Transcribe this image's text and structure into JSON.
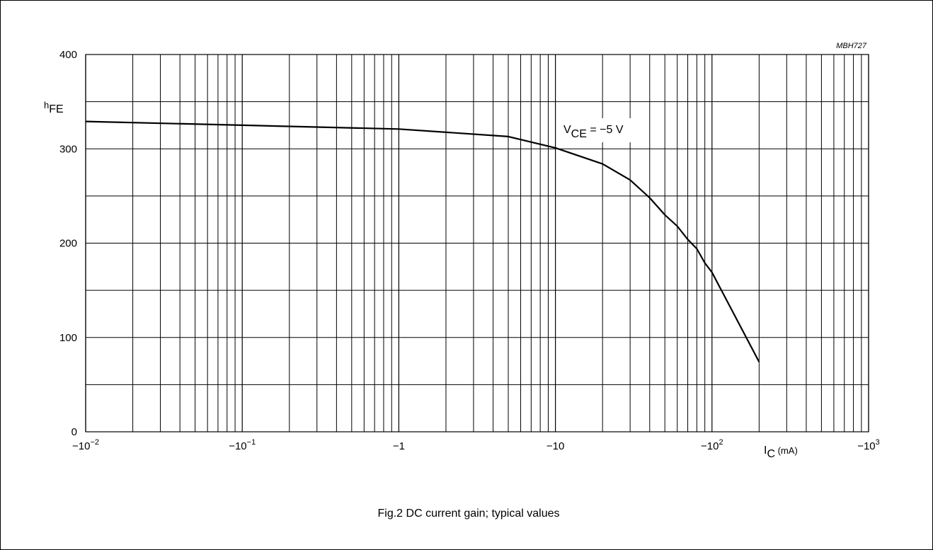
{
  "figure_code": "MBH727",
  "caption": "Fig.2  DC current gain; typical values",
  "annotation": {
    "main": "V",
    "sub": "CE",
    "rest": " = −5 V"
  },
  "ylabel": {
    "main": "h",
    "sub": "FE"
  },
  "xlabel": {
    "main": "I",
    "sub": "C",
    "rest": " (mA)"
  },
  "chart_data": {
    "type": "line",
    "title": "Fig.2  DC current gain; typical values",
    "xscale": "log",
    "xlim": [
      -0.01,
      -1000
    ],
    "ylim": [
      0,
      400
    ],
    "grid": true,
    "yticks": [
      0,
      100,
      200,
      300,
      400
    ],
    "ytick_labels": [
      "0",
      "100",
      "200",
      "300",
      "400"
    ],
    "xticks": [
      {
        "base": "−10",
        "exp": "−2"
      },
      {
        "base": "−10",
        "exp": "−1"
      },
      {
        "base": "−1",
        "exp": ""
      },
      {
        "base": "−10",
        "exp": ""
      },
      {
        "base": "−10",
        "exp": "2"
      },
      {
        "base": "−10",
        "exp": "3"
      }
    ],
    "series": [
      {
        "name": "VCE = −5 V",
        "x": [
          -0.01,
          -0.1,
          -1,
          -5,
          -10,
          -20,
          -30,
          -40,
          -50,
          -60,
          -70,
          -80,
          -90,
          -100,
          -200
        ],
        "y": [
          329,
          325,
          321,
          313,
          301,
          284,
          267,
          248,
          230,
          218,
          204,
          194,
          179,
          169,
          74
        ]
      }
    ]
  }
}
